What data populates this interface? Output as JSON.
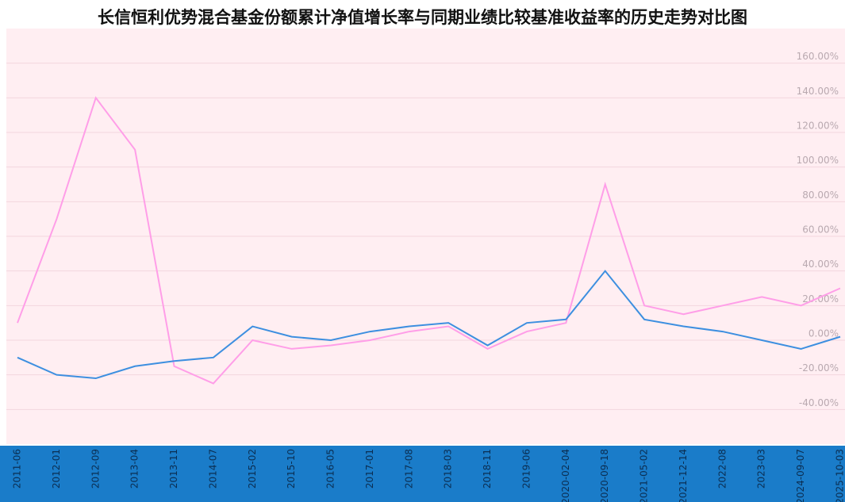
{
  "chart_data": {
    "type": "line",
    "title": "长信恒利优势混合基金份额累计净值增长率与同期业绩比较基准收益率的历史走势对比图",
    "categories": [
      "2011-06",
      "2012-01",
      "2012-09",
      "2013-04",
      "2013-11",
      "2014-07",
      "2015-02",
      "2015-10",
      "2016-05",
      "2017-01",
      "2017-08",
      "2018-03",
      "2018-11",
      "2019-06",
      "2020-02-04",
      "2020-09-18",
      "2021-05-02",
      "2021-12-14",
      "2022-08",
      "2023-03",
      "2024-09-07",
      "2025-10-03"
    ],
    "series": [
      {
        "color": "#ff9ee8",
        "values": [
          10,
          70,
          140,
          110,
          -15,
          -25,
          0,
          -5,
          -3,
          0,
          5,
          8,
          -5,
          5,
          10,
          90,
          20,
          15,
          20,
          25,
          20,
          30
        ]
      },
      {
        "color": "#3d8fe0",
        "values": [
          -10,
          -20,
          -22,
          -15,
          -12,
          -10,
          8,
          2,
          0,
          5,
          8,
          10,
          -3,
          10,
          12,
          40,
          12,
          8,
          5,
          0,
          -5,
          2
        ]
      }
    ],
    "ylim": [
      -60,
      180
    ],
    "yticks": [
      {
        "value": -40,
        "label": "-40.00%"
      },
      {
        "value": -20,
        "label": "-20.00%"
      },
      {
        "value": 0,
        "label": "0.00%"
      },
      {
        "value": 20,
        "label": "20.00%"
      },
      {
        "value": 40,
        "label": "40.00%"
      },
      {
        "value": 60,
        "label": "60.00%"
      },
      {
        "value": 80,
        "label": "80.00%"
      },
      {
        "value": 100,
        "label": "100.00%"
      },
      {
        "value": 120,
        "label": "120.00%"
      },
      {
        "value": 140,
        "label": "140.00%"
      },
      {
        "value": 160,
        "label": "160.00%"
      }
    ],
    "grid": true
  }
}
